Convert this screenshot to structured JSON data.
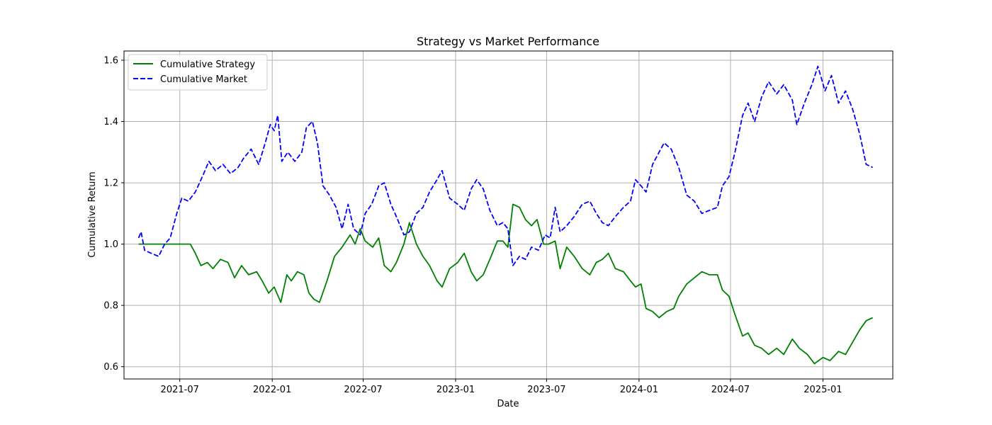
{
  "chart_data": {
    "type": "line",
    "title": "Strategy vs Market Performance",
    "xlabel": "Date",
    "ylabel": "Cumulative Return",
    "xlim": [
      "2021-03-12",
      "2025-05-20"
    ],
    "ylim": [
      0.56,
      1.63
    ],
    "grid": true,
    "legend_position": "top-left",
    "x_ticks": [
      {
        "date": "2021-07-01",
        "label": "2021-07"
      },
      {
        "date": "2022-01-01",
        "label": "2022-01"
      },
      {
        "date": "2022-07-01",
        "label": "2022-07"
      },
      {
        "date": "2023-01-01",
        "label": "2023-01"
      },
      {
        "date": "2023-07-01",
        "label": "2023-07"
      },
      {
        "date": "2024-01-01",
        "label": "2024-01"
      },
      {
        "date": "2024-07-01",
        "label": "2024-07"
      },
      {
        "date": "2025-01-01",
        "label": "2025-01"
      }
    ],
    "y_ticks": [
      {
        "value": 0.6,
        "label": "0.6"
      },
      {
        "value": 0.8,
        "label": "0.8"
      },
      {
        "value": 1.0,
        "label": "1.0"
      },
      {
        "value": 1.2,
        "label": "1.2"
      },
      {
        "value": 1.4,
        "label": "1.4"
      },
      {
        "value": 1.6,
        "label": "1.6"
      }
    ],
    "series": [
      {
        "name": "Cumulative Strategy",
        "color": "#008000",
        "dash": "solid",
        "points": [
          [
            "2021-04-10",
            1.0
          ],
          [
            "2021-05-01",
            1.0
          ],
          [
            "2021-06-01",
            1.0
          ],
          [
            "2021-07-01",
            1.0
          ],
          [
            "2021-07-22",
            1.0
          ],
          [
            "2021-08-01",
            0.97
          ],
          [
            "2021-08-12",
            0.93
          ],
          [
            "2021-08-25",
            0.94
          ],
          [
            "2021-09-05",
            0.92
          ],
          [
            "2021-09-20",
            0.95
          ],
          [
            "2021-10-05",
            0.94
          ],
          [
            "2021-10-18",
            0.89
          ],
          [
            "2021-11-01",
            0.93
          ],
          [
            "2021-11-15",
            0.9
          ],
          [
            "2021-12-01",
            0.91
          ],
          [
            "2021-12-12",
            0.88
          ],
          [
            "2021-12-25",
            0.84
          ],
          [
            "2022-01-05",
            0.86
          ],
          [
            "2022-01-18",
            0.81
          ],
          [
            "2022-01-30",
            0.9
          ],
          [
            "2022-02-08",
            0.88
          ],
          [
            "2022-02-20",
            0.91
          ],
          [
            "2022-03-05",
            0.9
          ],
          [
            "2022-03-15",
            0.84
          ],
          [
            "2022-03-25",
            0.82
          ],
          [
            "2022-04-05",
            0.81
          ],
          [
            "2022-04-20",
            0.88
          ],
          [
            "2022-05-05",
            0.96
          ],
          [
            "2022-05-20",
            0.99
          ],
          [
            "2022-06-05",
            1.03
          ],
          [
            "2022-06-15",
            1.0
          ],
          [
            "2022-06-25",
            1.05
          ],
          [
            "2022-07-05",
            1.01
          ],
          [
            "2022-07-20",
            0.99
          ],
          [
            "2022-08-01",
            1.02
          ],
          [
            "2022-08-12",
            0.93
          ],
          [
            "2022-08-25",
            0.91
          ],
          [
            "2022-09-05",
            0.94
          ],
          [
            "2022-09-20",
            1.0
          ],
          [
            "2022-10-01",
            1.07
          ],
          [
            "2022-10-15",
            1.0
          ],
          [
            "2022-10-28",
            0.96
          ],
          [
            "2022-11-10",
            0.93
          ],
          [
            "2022-11-25",
            0.88
          ],
          [
            "2022-12-05",
            0.86
          ],
          [
            "2022-12-20",
            0.92
          ],
          [
            "2023-01-05",
            0.94
          ],
          [
            "2023-01-18",
            0.97
          ],
          [
            "2023-02-01",
            0.91
          ],
          [
            "2023-02-12",
            0.88
          ],
          [
            "2023-02-25",
            0.9
          ],
          [
            "2023-03-10",
            0.95
          ],
          [
            "2023-03-25",
            1.01
          ],
          [
            "2023-04-05",
            1.01
          ],
          [
            "2023-04-15",
            0.99
          ],
          [
            "2023-04-25",
            1.13
          ],
          [
            "2023-05-08",
            1.12
          ],
          [
            "2023-05-20",
            1.08
          ],
          [
            "2023-06-01",
            1.06
          ],
          [
            "2023-06-12",
            1.08
          ],
          [
            "2023-06-25",
            1.0
          ],
          [
            "2023-07-05",
            1.0
          ],
          [
            "2023-07-18",
            1.01
          ],
          [
            "2023-07-28",
            0.92
          ],
          [
            "2023-08-10",
            0.99
          ],
          [
            "2023-08-25",
            0.96
          ],
          [
            "2023-09-10",
            0.92
          ],
          [
            "2023-09-25",
            0.9
          ],
          [
            "2023-10-08",
            0.94
          ],
          [
            "2023-10-20",
            0.95
          ],
          [
            "2023-11-01",
            0.97
          ],
          [
            "2023-11-15",
            0.92
          ],
          [
            "2023-12-01",
            0.91
          ],
          [
            "2023-12-15",
            0.88
          ],
          [
            "2023-12-25",
            0.86
          ],
          [
            "2024-01-05",
            0.87
          ],
          [
            "2024-01-15",
            0.79
          ],
          [
            "2024-01-28",
            0.78
          ],
          [
            "2024-02-10",
            0.76
          ],
          [
            "2024-02-25",
            0.78
          ],
          [
            "2024-03-10",
            0.79
          ],
          [
            "2024-03-20",
            0.83
          ],
          [
            "2024-04-05",
            0.87
          ],
          [
            "2024-04-20",
            0.89
          ],
          [
            "2024-05-05",
            0.91
          ],
          [
            "2024-05-20",
            0.9
          ],
          [
            "2024-06-05",
            0.9
          ],
          [
            "2024-06-15",
            0.85
          ],
          [
            "2024-06-28",
            0.83
          ],
          [
            "2024-07-10",
            0.77
          ],
          [
            "2024-07-25",
            0.7
          ],
          [
            "2024-08-05",
            0.71
          ],
          [
            "2024-08-18",
            0.67
          ],
          [
            "2024-09-01",
            0.66
          ],
          [
            "2024-09-15",
            0.64
          ],
          [
            "2024-10-01",
            0.66
          ],
          [
            "2024-10-15",
            0.64
          ],
          [
            "2024-11-01",
            0.69
          ],
          [
            "2024-11-15",
            0.66
          ],
          [
            "2024-12-01",
            0.64
          ],
          [
            "2024-12-15",
            0.61
          ],
          [
            "2025-01-01",
            0.63
          ],
          [
            "2025-01-15",
            0.62
          ],
          [
            "2025-02-01",
            0.65
          ],
          [
            "2025-02-15",
            0.64
          ],
          [
            "2025-03-01",
            0.68
          ],
          [
            "2025-03-15",
            0.72
          ],
          [
            "2025-03-28",
            0.75
          ],
          [
            "2025-04-10",
            0.76
          ]
        ]
      },
      {
        "name": "Cumulative Market",
        "color": "#0000ff",
        "dash": "dashed",
        "points": [
          [
            "2021-04-10",
            1.02
          ],
          [
            "2021-04-15",
            1.04
          ],
          [
            "2021-04-22",
            0.98
          ],
          [
            "2021-05-05",
            0.97
          ],
          [
            "2021-05-20",
            0.96
          ],
          [
            "2021-06-01",
            1.0
          ],
          [
            "2021-06-12",
            1.02
          ],
          [
            "2021-06-25",
            1.1
          ],
          [
            "2021-07-05",
            1.15
          ],
          [
            "2021-07-18",
            1.14
          ],
          [
            "2021-08-01",
            1.17
          ],
          [
            "2021-08-15",
            1.22
          ],
          [
            "2021-08-28",
            1.27
          ],
          [
            "2021-09-10",
            1.24
          ],
          [
            "2021-09-25",
            1.26
          ],
          [
            "2021-10-10",
            1.23
          ],
          [
            "2021-10-25",
            1.25
          ],
          [
            "2021-11-05",
            1.28
          ],
          [
            "2021-11-20",
            1.31
          ],
          [
            "2021-12-05",
            1.26
          ],
          [
            "2021-12-18",
            1.33
          ],
          [
            "2021-12-28",
            1.39
          ],
          [
            "2022-01-05",
            1.37
          ],
          [
            "2022-01-12",
            1.42
          ],
          [
            "2022-01-20",
            1.27
          ],
          [
            "2022-02-01",
            1.3
          ],
          [
            "2022-02-15",
            1.27
          ],
          [
            "2022-03-01",
            1.3
          ],
          [
            "2022-03-10",
            1.38
          ],
          [
            "2022-03-22",
            1.4
          ],
          [
            "2022-04-01",
            1.33
          ],
          [
            "2022-04-12",
            1.19
          ],
          [
            "2022-04-25",
            1.16
          ],
          [
            "2022-05-08",
            1.12
          ],
          [
            "2022-05-20",
            1.05
          ],
          [
            "2022-06-01",
            1.13
          ],
          [
            "2022-06-12",
            1.05
          ],
          [
            "2022-06-25",
            1.03
          ],
          [
            "2022-07-05",
            1.1
          ],
          [
            "2022-07-18",
            1.13
          ],
          [
            "2022-08-01",
            1.19
          ],
          [
            "2022-08-12",
            1.2
          ],
          [
            "2022-08-25",
            1.13
          ],
          [
            "2022-09-05",
            1.09
          ],
          [
            "2022-09-20",
            1.03
          ],
          [
            "2022-10-01",
            1.04
          ],
          [
            "2022-10-15",
            1.1
          ],
          [
            "2022-10-28",
            1.12
          ],
          [
            "2022-11-10",
            1.17
          ],
          [
            "2022-11-25",
            1.21
          ],
          [
            "2022-12-05",
            1.24
          ],
          [
            "2022-12-20",
            1.15
          ],
          [
            "2023-01-05",
            1.13
          ],
          [
            "2023-01-18",
            1.11
          ],
          [
            "2023-02-01",
            1.18
          ],
          [
            "2023-02-12",
            1.21
          ],
          [
            "2023-02-25",
            1.18
          ],
          [
            "2023-03-10",
            1.11
          ],
          [
            "2023-03-25",
            1.06
          ],
          [
            "2023-04-05",
            1.07
          ],
          [
            "2023-04-15",
            1.05
          ],
          [
            "2023-04-25",
            0.93
          ],
          [
            "2023-05-08",
            0.96
          ],
          [
            "2023-05-20",
            0.95
          ],
          [
            "2023-06-01",
            0.99
          ],
          [
            "2023-06-15",
            0.98
          ],
          [
            "2023-06-28",
            1.03
          ],
          [
            "2023-07-08",
            1.02
          ],
          [
            "2023-07-18",
            1.12
          ],
          [
            "2023-07-28",
            1.04
          ],
          [
            "2023-08-10",
            1.06
          ],
          [
            "2023-08-25",
            1.09
          ],
          [
            "2023-09-10",
            1.13
          ],
          [
            "2023-09-25",
            1.14
          ],
          [
            "2023-10-08",
            1.1
          ],
          [
            "2023-10-20",
            1.07
          ],
          [
            "2023-11-01",
            1.06
          ],
          [
            "2023-11-15",
            1.09
          ],
          [
            "2023-12-01",
            1.12
          ],
          [
            "2023-12-15",
            1.14
          ],
          [
            "2023-12-25",
            1.21
          ],
          [
            "2024-01-05",
            1.19
          ],
          [
            "2024-01-15",
            1.17
          ],
          [
            "2024-01-28",
            1.26
          ],
          [
            "2024-02-10",
            1.3
          ],
          [
            "2024-02-20",
            1.33
          ],
          [
            "2024-03-05",
            1.31
          ],
          [
            "2024-03-20",
            1.25
          ],
          [
            "2024-04-05",
            1.16
          ],
          [
            "2024-04-20",
            1.14
          ],
          [
            "2024-05-05",
            1.1
          ],
          [
            "2024-05-20",
            1.11
          ],
          [
            "2024-06-05",
            1.12
          ],
          [
            "2024-06-15",
            1.19
          ],
          [
            "2024-06-28",
            1.22
          ],
          [
            "2024-07-10",
            1.3
          ],
          [
            "2024-07-25",
            1.42
          ],
          [
            "2024-08-05",
            1.46
          ],
          [
            "2024-08-18",
            1.4
          ],
          [
            "2024-09-01",
            1.48
          ],
          [
            "2024-09-15",
            1.53
          ],
          [
            "2024-10-01",
            1.49
          ],
          [
            "2024-10-15",
            1.52
          ],
          [
            "2024-11-01",
            1.47
          ],
          [
            "2024-11-10",
            1.39
          ],
          [
            "2024-11-25",
            1.46
          ],
          [
            "2024-12-10",
            1.52
          ],
          [
            "2024-12-22",
            1.58
          ],
          [
            "2025-01-05",
            1.5
          ],
          [
            "2025-01-18",
            1.55
          ],
          [
            "2025-02-01",
            1.46
          ],
          [
            "2025-02-15",
            1.5
          ],
          [
            "2025-03-01",
            1.44
          ],
          [
            "2025-03-15",
            1.36
          ],
          [
            "2025-03-28",
            1.26
          ],
          [
            "2025-04-10",
            1.25
          ]
        ]
      }
    ]
  }
}
